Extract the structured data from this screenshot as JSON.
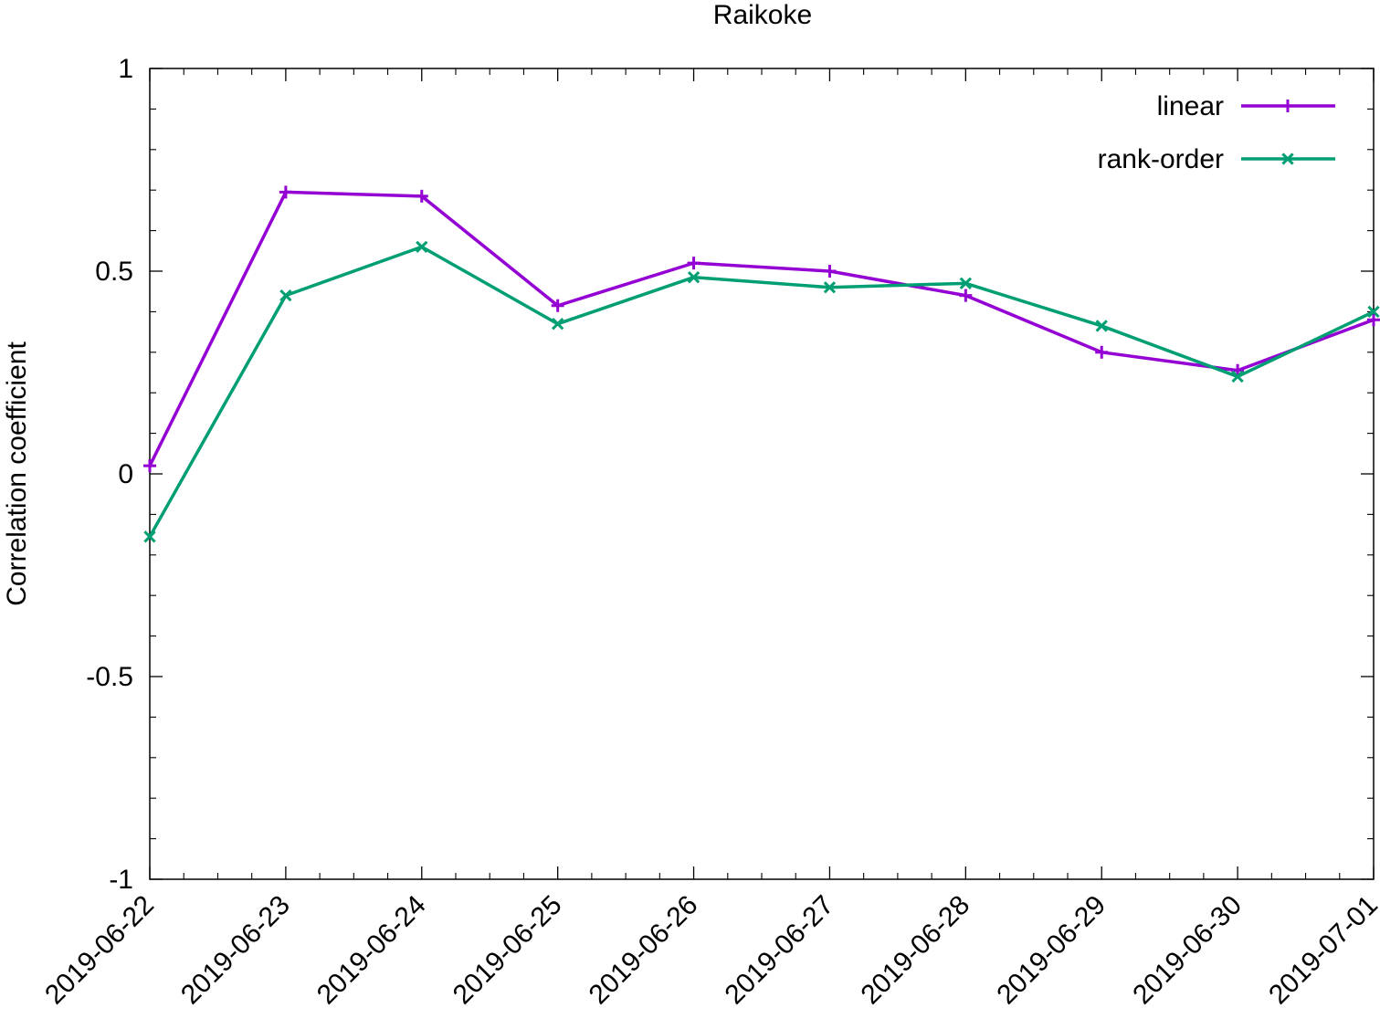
{
  "chart_data": {
    "type": "line",
    "title": "Raikoke",
    "xlabel": "",
    "ylabel": "Correlation coefficient",
    "x": [
      "2019-06-22",
      "2019-06-23",
      "2019-06-24",
      "2019-06-25",
      "2019-06-26",
      "2019-06-27",
      "2019-06-28",
      "2019-06-29",
      "2019-06-30",
      "2019-07-01"
    ],
    "ylim": [
      -1,
      1
    ],
    "yticks": [
      {
        "value": 1,
        "label": "1"
      },
      {
        "value": 0.5,
        "label": "0.5"
      },
      {
        "value": 0,
        "label": "0"
      },
      {
        "value": -0.5,
        "label": "-0.5"
      },
      {
        "value": -1,
        "label": "-1"
      }
    ],
    "grid": false,
    "legend_position": "top-right",
    "series": [
      {
        "name": "linear",
        "color": "#9400d3",
        "marker": "plus",
        "values": [
          0.02,
          0.695,
          0.685,
          0.415,
          0.52,
          0.5,
          0.44,
          0.3,
          0.255,
          0.38
        ]
      },
      {
        "name": "rank-order",
        "color": "#009e73",
        "marker": "cross",
        "values": [
          -0.155,
          0.44,
          0.56,
          0.37,
          0.485,
          0.46,
          0.47,
          0.365,
          0.24,
          0.4
        ]
      }
    ]
  }
}
